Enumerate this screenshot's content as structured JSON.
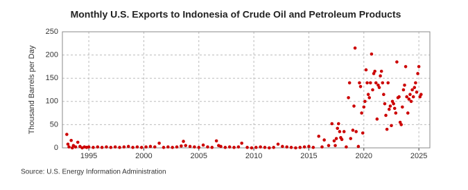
{
  "chart_data": {
    "type": "scatter",
    "title": "Monthly U.S. Exports to Indonesia of Crude Oil and Petroleum Products",
    "y_label": "Thousand Barrels per Day",
    "source": "Source: U.S. Energy Information Administration",
    "color": "#cc0000",
    "grid": true,
    "xlim": [
      1992.6,
      2026
    ],
    "xticks": [
      1995,
      2000,
      2005,
      2010,
      2015,
      2020,
      2025
    ],
    "ylim": [
      0,
      250
    ],
    "yticks": [
      0,
      50,
      100,
      150,
      200,
      250
    ],
    "x": [
      1993.0,
      1993.1,
      1993.2,
      1993.4,
      1993.5,
      1993.6,
      1993.8,
      1994.0,
      1994.2,
      1994.4,
      1994.6,
      1994.8,
      1995.0,
      1995.4,
      1995.8,
      1996.2,
      1996.6,
      1997.0,
      1997.4,
      1997.8,
      1998.2,
      1998.6,
      1999.0,
      1999.4,
      1999.8,
      2000.2,
      2000.6,
      2001.0,
      2001.4,
      2001.8,
      2002.2,
      2002.6,
      2003.0,
      2003.4,
      2003.6,
      2003.8,
      2004.2,
      2004.6,
      2005.0,
      2005.4,
      2005.8,
      2006.2,
      2006.6,
      2006.8,
      2007.0,
      2007.4,
      2007.8,
      2008.2,
      2008.6,
      2008.9,
      2009.4,
      2009.8,
      2010.2,
      2010.6,
      2011.0,
      2011.4,
      2011.8,
      2012.2,
      2012.6,
      2013.0,
      2013.4,
      2013.8,
      2014.2,
      2014.6,
      2015.0,
      2015.4,
      2015.9,
      2016.2,
      2016.4,
      2016.8,
      2017.1,
      2017.3,
      2017.4,
      2017.5,
      2017.6,
      2017.7,
      2017.8,
      2017.9,
      2018.0,
      2018.2,
      2018.4,
      2018.6,
      2018.7,
      2018.8,
      2019.0,
      2019.1,
      2019.2,
      2019.3,
      2019.5,
      2019.6,
      2019.7,
      2019.8,
      2019.9,
      2020.0,
      2020.1,
      2020.2,
      2020.3,
      2020.4,
      2020.5,
      2020.6,
      2020.7,
      2020.8,
      2020.9,
      2021.0,
      2021.1,
      2021.2,
      2021.3,
      2021.4,
      2021.5,
      2021.6,
      2021.7,
      2021.8,
      2021.9,
      2022.0,
      2022.1,
      2022.2,
      2022.3,
      2022.4,
      2022.5,
      2022.6,
      2022.7,
      2022.8,
      2022.9,
      2023.0,
      2023.1,
      2023.2,
      2023.3,
      2023.4,
      2023.5,
      2023.6,
      2023.7,
      2023.8,
      2023.9,
      2024.0,
      2024.1,
      2024.2,
      2024.3,
      2024.4,
      2024.5,
      2024.6,
      2024.7,
      2024.8,
      2024.9,
      2025.0,
      2025.1,
      2025.2
    ],
    "values": [
      29,
      8,
      2,
      16,
      0,
      5,
      2,
      12,
      3,
      0,
      2,
      1,
      2,
      1,
      2,
      1,
      2,
      1,
      2,
      1,
      2,
      3,
      1,
      2,
      1,
      2,
      3,
      2,
      10,
      1,
      2,
      1,
      2,
      4,
      14,
      5,
      3,
      2,
      1,
      6,
      2,
      1,
      15,
      5,
      3,
      1,
      2,
      1,
      2,
      10,
      1,
      0,
      1,
      2,
      1,
      0,
      1,
      8,
      3,
      2,
      1,
      0,
      1,
      2,
      3,
      1,
      25,
      2,
      17,
      5,
      52,
      15,
      5,
      20,
      42,
      52,
      35,
      22,
      18,
      35,
      2,
      108,
      140,
      20,
      38,
      90,
      215,
      35,
      3,
      140,
      132,
      75,
      32,
      88,
      100,
      168,
      140,
      115,
      108,
      140,
      202,
      125,
      160,
      165,
      140,
      62,
      135,
      130,
      155,
      165,
      140,
      115,
      95,
      70,
      40,
      140,
      83,
      90,
      48,
      100,
      95,
      85,
      75,
      185,
      108,
      110,
      55,
      50,
      88,
      125,
      135,
      175,
      110,
      75,
      105,
      115,
      100,
      125,
      110,
      130,
      140,
      120,
      160,
      175,
      110,
      115
    ]
  }
}
